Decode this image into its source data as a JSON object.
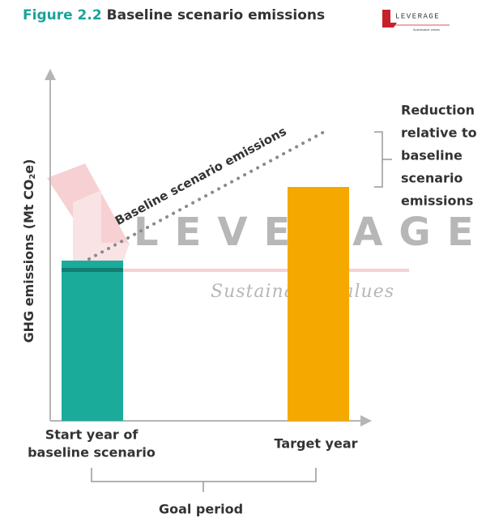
{
  "header": {
    "figure_number": "Figure 2.2",
    "title": "Baseline scenario emissions"
  },
  "logo": {
    "name": "LEVERAGE",
    "tagline": "Sustainable values"
  },
  "y_axis_label": {
    "before": "GHG emissions (Mt CO",
    "subscript": "2",
    "after": "e)"
  },
  "baseline_label": "Baseline scenario emissions",
  "reduction_label": [
    "Reduction",
    "relative to",
    "baseline",
    "scenario",
    "emissions"
  ],
  "categories": [
    [
      "Start year of",
      "baseline scenario"
    ],
    [
      "Target year"
    ]
  ],
  "period_label": "Goal period",
  "watermark": {
    "name": "LEVERAGE",
    "tagline": "Sustainable values"
  }
}
